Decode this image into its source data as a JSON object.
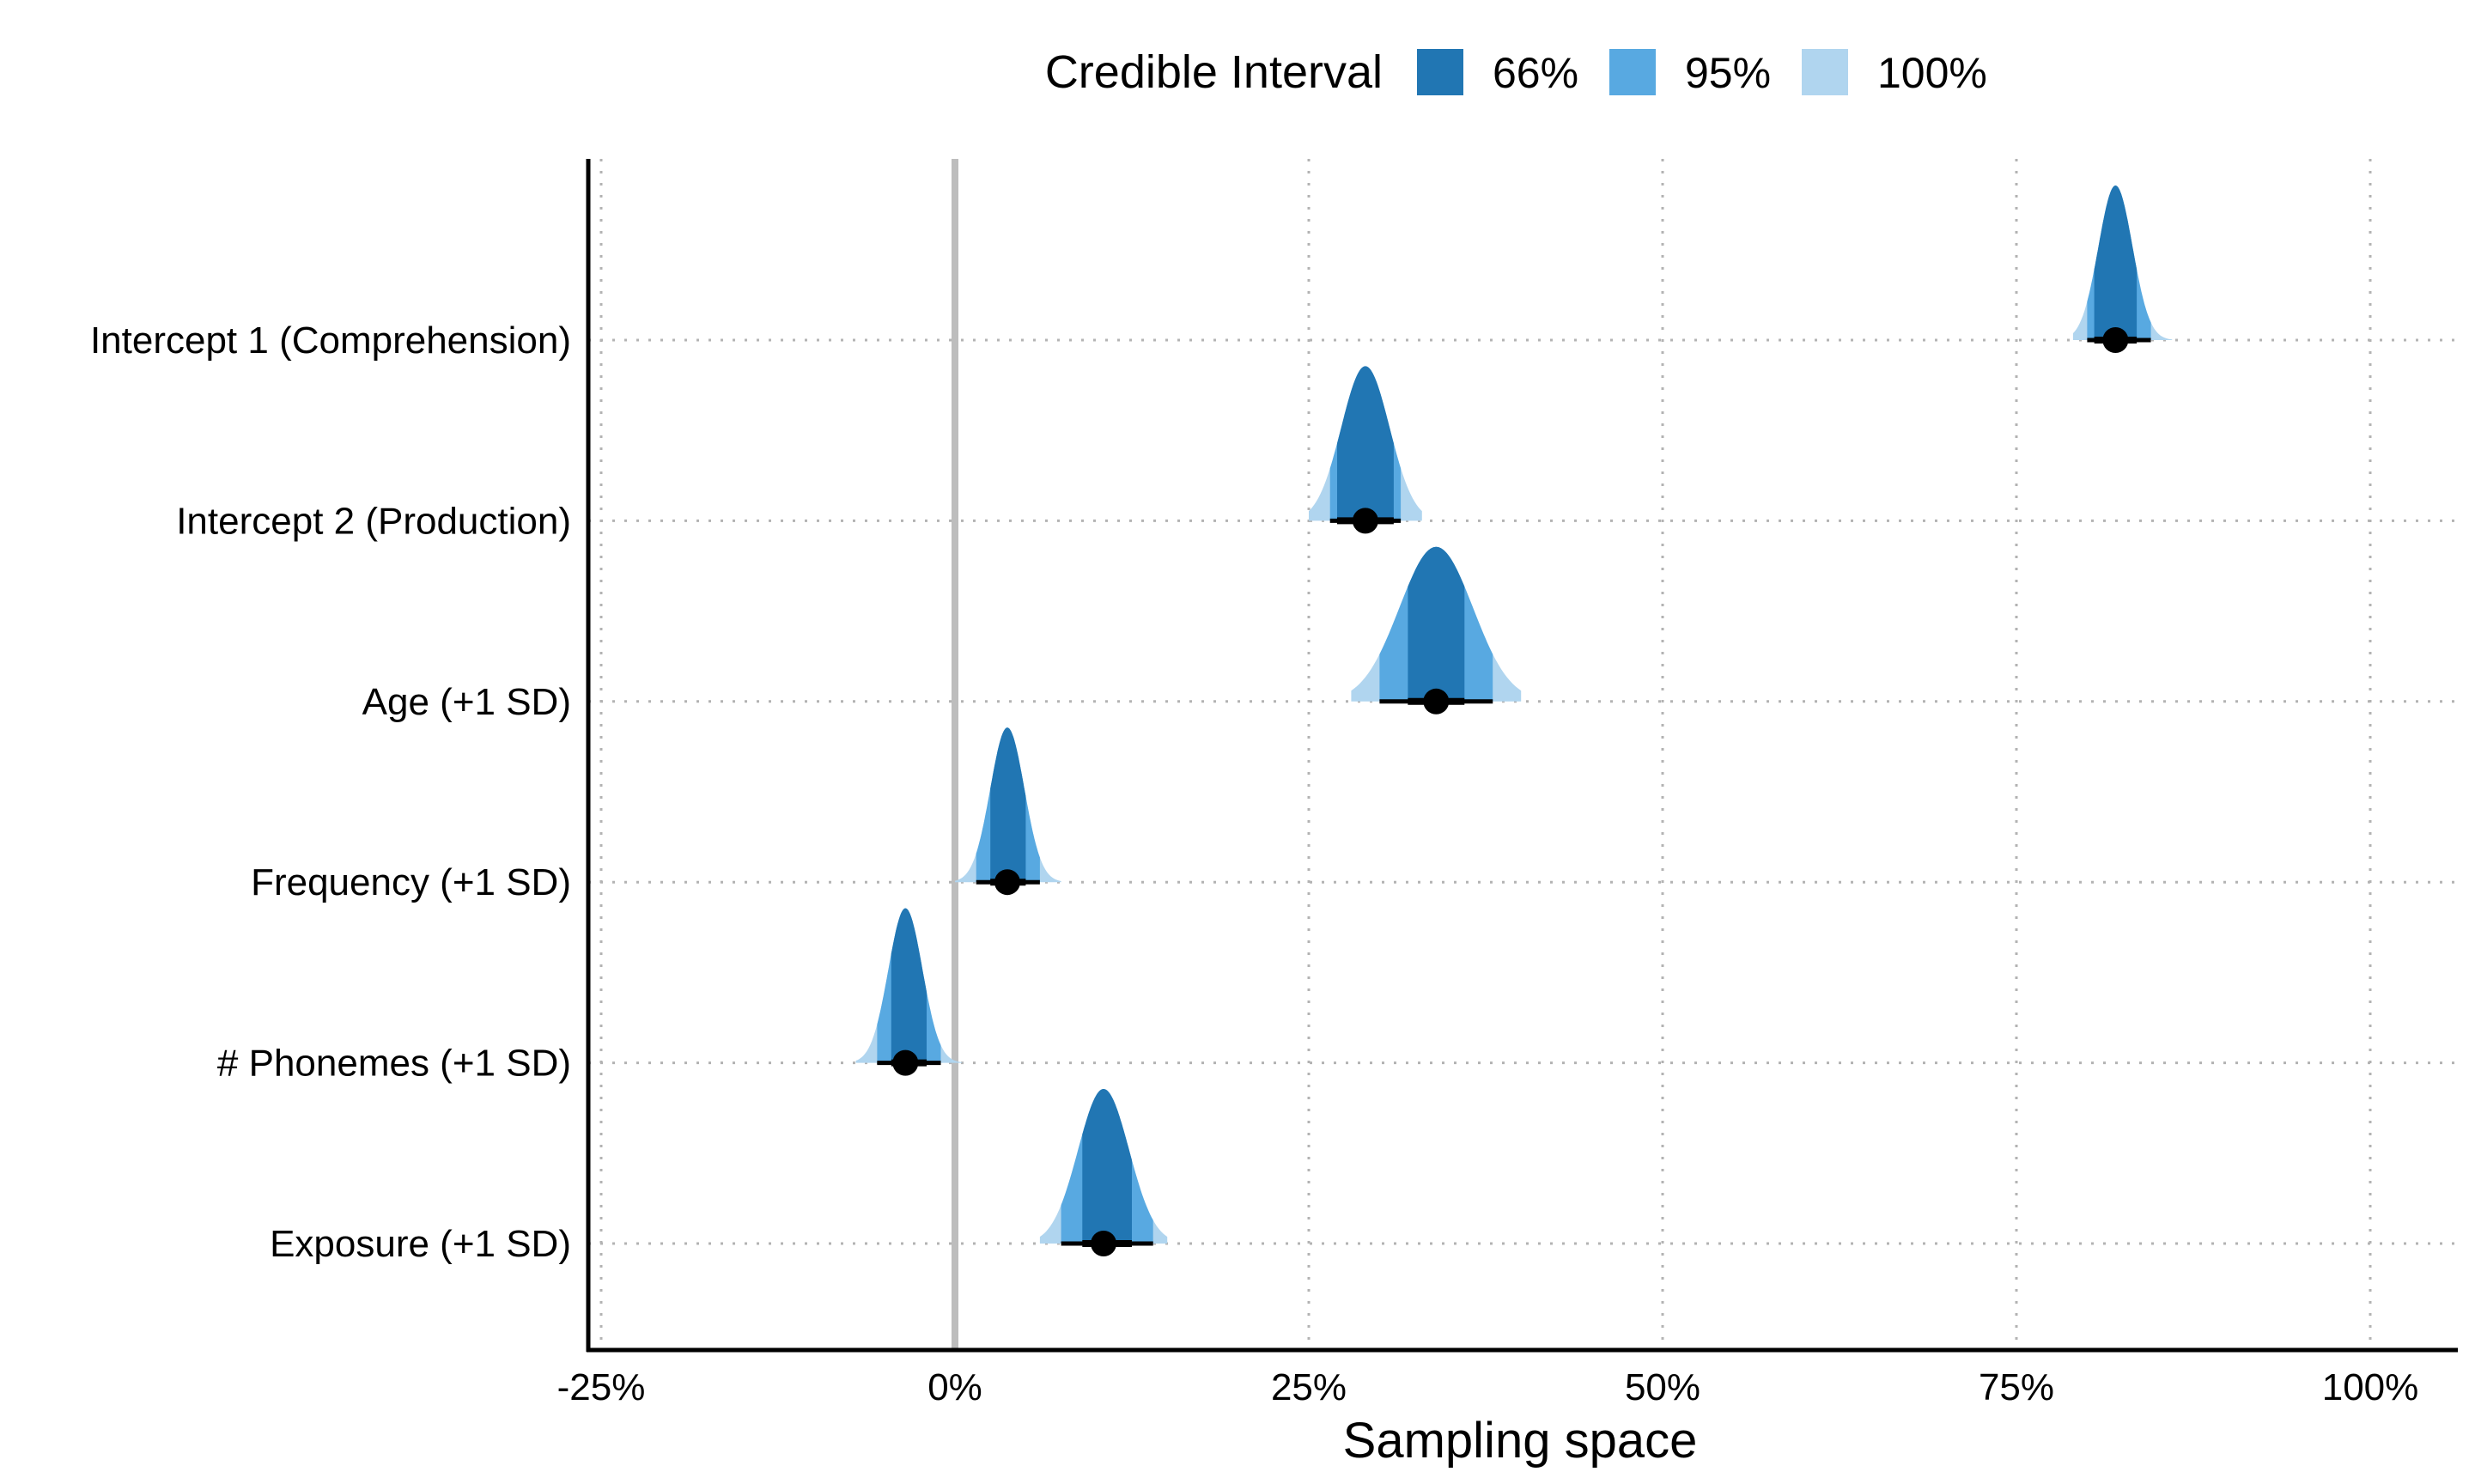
{
  "chart_data": {
    "type": "interval-density",
    "title": "",
    "xlabel": "Sampling space",
    "ylabel": "",
    "xlim": [
      -0.26,
      1.06
    ],
    "x_ticks": [
      {
        "value": -0.25,
        "label": "-25%"
      },
      {
        "value": 0,
        "label": "0%"
      },
      {
        "value": 0.25,
        "label": "25%"
      },
      {
        "value": 0.5,
        "label": "50%"
      },
      {
        "value": 0.75,
        "label": "75%"
      },
      {
        "value": 1.0,
        "label": "100%"
      }
    ],
    "reference_line": 0,
    "grid": "dotted",
    "legend": {
      "title": "Credible Interval",
      "position": "top",
      "entries": [
        {
          "label": "66%",
          "color": "#2176B3"
        },
        {
          "label": "95%",
          "color": "#58A9E1"
        },
        {
          "label": "100%",
          "color": "#B0D5EF"
        }
      ]
    },
    "rows": [
      {
        "label": "Intercept 1 (Comprehension)",
        "median": 0.82,
        "ci66": [
          0.805,
          0.835
        ],
        "ci95": [
          0.8,
          0.845
        ],
        "ci100": [
          0.79,
          0.86
        ],
        "sd": 0.012
      },
      {
        "label": "Intercept 2 (Production)",
        "median": 0.29,
        "ci66": [
          0.27,
          0.31
        ],
        "ci95": [
          0.265,
          0.315
        ],
        "ci100": [
          0.25,
          0.33
        ],
        "sd": 0.017
      },
      {
        "label": "Age (+1 SD)",
        "median": 0.34,
        "ci66": [
          0.32,
          0.36
        ],
        "ci95": [
          0.3,
          0.38
        ],
        "ci100": [
          0.28,
          0.4
        ],
        "sd": 0.026
      },
      {
        "label": "Frequency (+1 SD)",
        "median": 0.037,
        "ci66": [
          0.025,
          0.05
        ],
        "ci95": [
          0.015,
          0.06
        ],
        "ci100": [
          0.0,
          0.075
        ],
        "sd": 0.012
      },
      {
        "label": "# Phonemes (+1 SD)",
        "median": -0.035,
        "ci66": [
          -0.045,
          -0.02
        ],
        "ci95": [
          -0.055,
          -0.01
        ],
        "ci100": [
          -0.07,
          0.005
        ],
        "sd": 0.012
      },
      {
        "label": "Exposure (+1 SD)",
        "median": 0.105,
        "ci66": [
          0.09,
          0.125
        ],
        "ci95": [
          0.075,
          0.14
        ],
        "ci100": [
          0.06,
          0.15
        ],
        "sd": 0.018
      }
    ]
  }
}
